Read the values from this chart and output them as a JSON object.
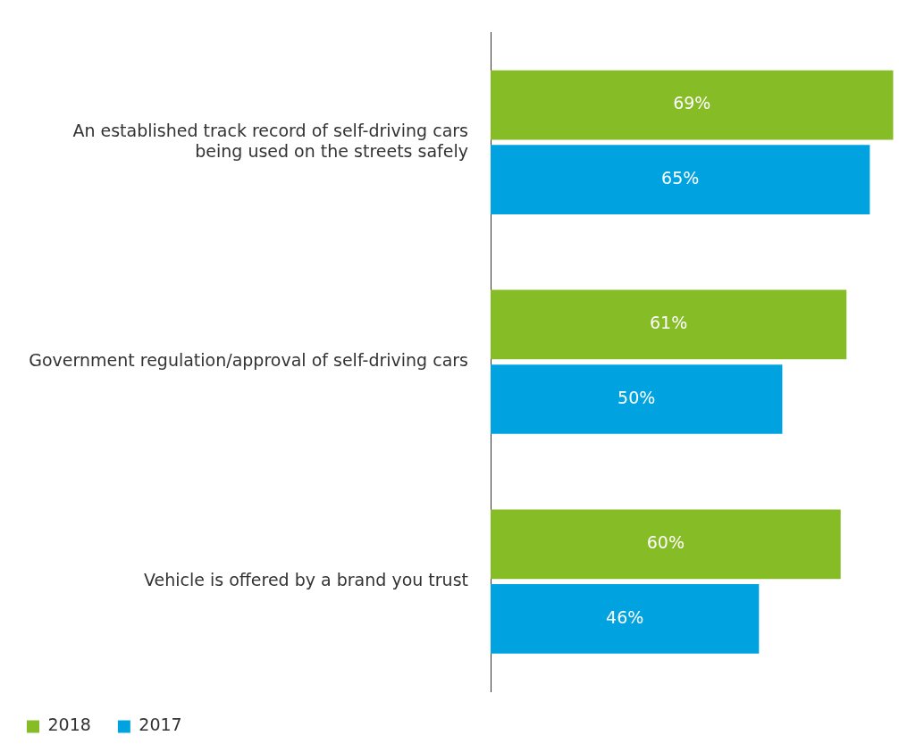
{
  "chart_data": {
    "type": "bar",
    "orientation": "horizontal",
    "categories": [
      "An established track record of self-driving cars being used on the streets safely",
      "Government regulation/approval of self-driving cars",
      "Vehicle is offered by a brand you trust"
    ],
    "series": [
      {
        "name": "2018",
        "color": "#86bc25",
        "values": [
          69,
          61,
          60
        ],
        "value_labels": [
          "69%",
          "61%",
          "60%"
        ]
      },
      {
        "name": "2017",
        "color": "#00a3e0",
        "values": [
          65,
          50,
          46
        ],
        "value_labels": [
          "65%",
          "50%",
          "46%"
        ]
      }
    ],
    "legend": "bottom left",
    "tick_labels": "y"
  }
}
